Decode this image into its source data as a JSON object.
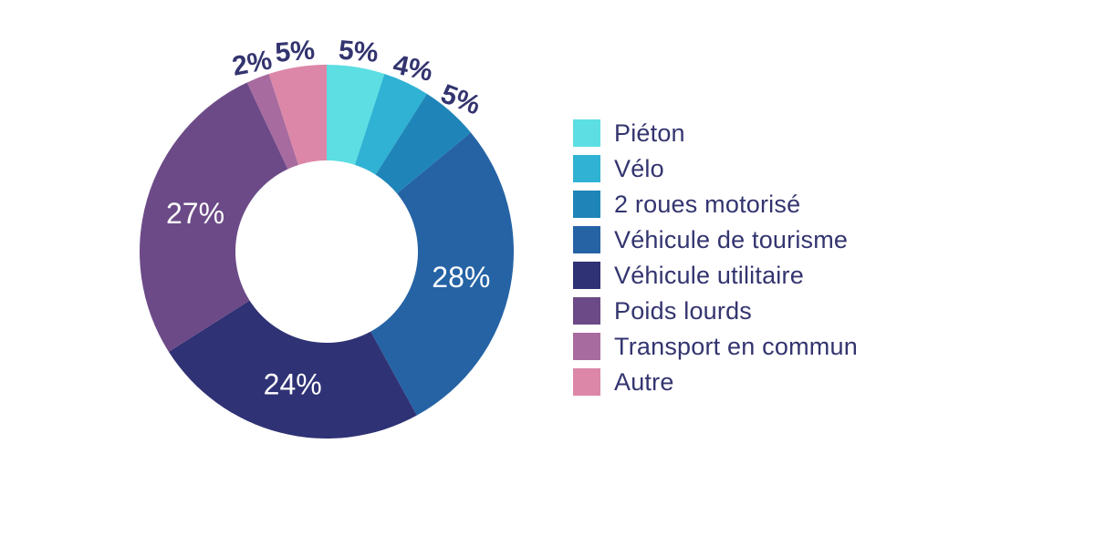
{
  "chart_data": {
    "type": "pie",
    "subtype": "donut",
    "title": "",
    "unit": "%",
    "start_angle_deg": 0,
    "direction": "clockwise",
    "inner_radius_ratio": 0.49,
    "legend_position": "right",
    "background_color": "#FFFFFF",
    "label_color_outside": "#33346F",
    "label_color_inside": "#FFFFFF",
    "categories": [
      "Piéton",
      "Vélo",
      "2 roues motorisé",
      "Véhicule de tourisme",
      "Véhicule utilitaire",
      "Poids lourds",
      "Transport en commun",
      "Autre"
    ],
    "values": [
      5,
      4,
      5,
      28,
      24,
      27,
      2,
      5
    ],
    "slices": [
      {
        "label": "Piéton",
        "value": 5,
        "pct_label": "5%",
        "color": "#5CDEE3",
        "label_placement": "outside"
      },
      {
        "label": "Vélo",
        "value": 4,
        "pct_label": "4%",
        "color": "#2FB2D4",
        "label_placement": "outside"
      },
      {
        "label": "2 roues motorisé",
        "value": 5,
        "pct_label": "5%",
        "color": "#1F85B8",
        "label_placement": "outside"
      },
      {
        "label": "Véhicule de tourisme",
        "value": 28,
        "pct_label": "28%",
        "color": "#2563A5",
        "label_placement": "inside"
      },
      {
        "label": "Véhicule utilitaire",
        "value": 24,
        "pct_label": "24%",
        "color": "#2F3274",
        "label_placement": "inside"
      },
      {
        "label": "Poids lourds",
        "value": 27,
        "pct_label": "27%",
        "color": "#6C4A87",
        "label_placement": "inside"
      },
      {
        "label": "Transport en commun",
        "value": 2,
        "pct_label": "2%",
        "color": "#A76B9F",
        "label_placement": "outside"
      },
      {
        "label": "Autre",
        "value": 5,
        "pct_label": "5%",
        "color": "#DC87A8",
        "label_placement": "outside"
      }
    ]
  }
}
